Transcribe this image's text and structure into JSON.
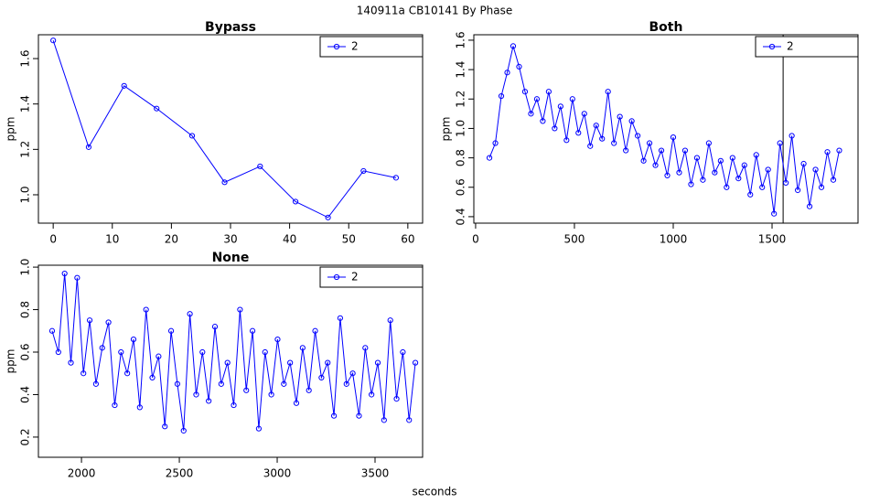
{
  "title": "140911a   CB10141   By Phase",
  "x_label": "seconds",
  "chart_data": [
    {
      "type": "line",
      "title": "Bypass",
      "y_label": "ppm",
      "x": [
        0,
        6,
        12,
        17.5,
        23.5,
        29,
        35,
        41,
        46.5,
        52.5,
        58
      ],
      "series": [
        {
          "name": "2",
          "color": "#0000ff",
          "values": [
            1.68,
            1.21,
            1.48,
            1.38,
            1.26,
            1.055,
            1.125,
            0.97,
            0.9,
            1.105,
            1.075
          ]
        }
      ],
      "xlim": [
        -2.5,
        62.5
      ],
      "ylim": [
        0.875,
        1.705
      ],
      "xticks": [
        0,
        10,
        20,
        30,
        40,
        50,
        60
      ],
      "yticks": [
        {
          "value": 1.0,
          "label": "1.0"
        },
        1.2,
        1.4,
        1.6
      ],
      "legend": "top-right"
    },
    {
      "type": "line",
      "title": "Both",
      "y_label": "ppm",
      "x": [
        70,
        100,
        130,
        160,
        190,
        220,
        250,
        280,
        310,
        340,
        370,
        400,
        430,
        460,
        490,
        520,
        550,
        580,
        610,
        640,
        670,
        700,
        730,
        760,
        790,
        820,
        850,
        880,
        910,
        940,
        970,
        1000,
        1030,
        1060,
        1090,
        1120,
        1150,
        1180,
        1210,
        1240,
        1270,
        1300,
        1330,
        1360,
        1390,
        1420,
        1450,
        1480,
        1510,
        1540,
        1570,
        1600,
        1630,
        1660,
        1690,
        1720,
        1750,
        1780,
        1810,
        1840
      ],
      "series": [
        {
          "name": "2",
          "color": "#0000ff",
          "values": [
            0.8,
            0.9,
            1.22,
            1.38,
            1.56,
            1.42,
            1.25,
            1.1,
            1.2,
            1.05,
            1.25,
            1.0,
            1.15,
            0.92,
            1.2,
            0.97,
            1.1,
            0.88,
            1.02,
            0.93,
            1.25,
            0.9,
            1.08,
            0.85,
            1.05,
            0.95,
            0.78,
            0.9,
            0.75,
            0.85,
            0.68,
            0.94,
            0.7,
            0.85,
            0.62,
            0.8,
            0.65,
            0.9,
            0.7,
            0.78,
            0.6,
            0.8,
            0.66,
            0.75,
            0.55,
            0.82,
            0.6,
            0.72,
            0.42,
            0.9,
            0.63,
            0.95,
            0.58,
            0.76,
            0.47,
            0.72,
            0.6,
            0.84,
            0.65,
            0.85
          ]
        }
      ],
      "xlim": [
        -9,
        1935
      ],
      "ylim": [
        0.356,
        1.637
      ],
      "xticks": [
        0,
        500,
        1000,
        1500
      ],
      "yticks": [
        0.4,
        0.6,
        0.8,
        {
          "value": 1.0,
          "label": "1.0"
        },
        1.2,
        1.4,
        1.6
      ],
      "vline": 1556,
      "legend": "top-right"
    },
    {
      "type": "line",
      "title": "None",
      "y_label": "ppm",
      "x": [
        1850,
        1882,
        1914,
        1946,
        1978,
        2010,
        2042,
        2074,
        2106,
        2138,
        2170,
        2202,
        2234,
        2266,
        2298,
        2330,
        2362,
        2394,
        2426,
        2458,
        2490,
        2522,
        2554,
        2586,
        2618,
        2650,
        2682,
        2714,
        2746,
        2778,
        2810,
        2842,
        2874,
        2906,
        2938,
        2970,
        3002,
        3034,
        3066,
        3098,
        3130,
        3162,
        3194,
        3226,
        3258,
        3290,
        3322,
        3354,
        3386,
        3418,
        3450,
        3482,
        3514,
        3546,
        3578,
        3610,
        3642,
        3674,
        3706
      ],
      "series": [
        {
          "name": "2",
          "color": "#0000ff",
          "values": [
            0.7,
            0.6,
            0.97,
            0.55,
            0.95,
            0.5,
            0.75,
            0.45,
            0.62,
            0.74,
            0.35,
            0.6,
            0.5,
            0.66,
            0.34,
            0.8,
            0.48,
            0.58,
            0.25,
            0.7,
            0.45,
            0.23,
            0.78,
            0.4,
            0.6,
            0.37,
            0.72,
            0.45,
            0.55,
            0.35,
            0.8,
            0.42,
            0.7,
            0.24,
            0.6,
            0.4,
            0.66,
            0.45,
            0.55,
            0.36,
            0.62,
            0.42,
            0.7,
            0.48,
            0.55,
            0.3,
            0.76,
            0.45,
            0.5,
            0.3,
            0.62,
            0.4,
            0.55,
            0.28,
            0.75,
            0.38,
            0.6,
            0.28,
            0.55
          ]
        }
      ],
      "xlim": [
        1780,
        3743
      ],
      "ylim": [
        0.105,
        1.009
      ],
      "xticks": [
        2000,
        2500,
        3000,
        3500
      ],
      "yticks": [
        0.2,
        0.4,
        0.6,
        0.8,
        {
          "value": 1.0,
          "label": "1.0"
        }
      ],
      "legend": "top-right"
    }
  ]
}
